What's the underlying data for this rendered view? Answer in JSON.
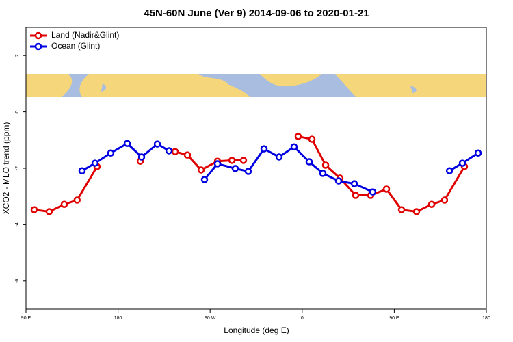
{
  "chart_data": {
    "type": "line",
    "title": "45N-60N June (Ver 9)   2014-09-06 to 2020-01-21",
    "xlabel": "Longitude (deg E)",
    "ylabel": "XCO2 - MLO trend (ppm)",
    "xlim": [
      90,
      540
    ],
    "xticks": [
      {
        "value": 90,
        "label": "90 E"
      },
      180,
      {
        "value": 270,
        "label": "90 W"
      },
      {
        "value": 360,
        "label": "0"
      },
      {
        "value": 450,
        "label": "90 E"
      },
      {
        "value": 540,
        "label": "180"
      }
    ],
    "ylim": [
      -7,
      3
    ],
    "yticks": [
      -6,
      -4,
      -2,
      0,
      2
    ],
    "legend": "top-left",
    "series": [
      {
        "name": "Land (Nadir&Glint)",
        "color": "#e00000",
        "x": [
          98,
          112.7,
          127.4,
          140,
          159.5,
          null,
          201.7,
          null,
          235.8,
          247.8,
          261.2,
          277.2,
          291.3,
          302.6,
          null,
          356.1,
          369.5,
          382.9,
          396.9,
          412.3,
          427,
          442.4,
          457.1,
          471.8,
          486.5,
          499.2,
          518.6
        ],
        "values": [
          -3.47,
          -3.54,
          -3.28,
          -3.13,
          -1.94,
          null,
          -1.75,
          null,
          -1.41,
          -1.53,
          -2.06,
          -1.75,
          -1.72,
          -1.72,
          null,
          -0.87,
          -0.97,
          -1.89,
          -2.35,
          -2.96,
          -2.96,
          -2.74,
          -3.47,
          -3.54,
          -3.28,
          -3.13,
          -1.94
        ]
      },
      {
        "name": "Ocean (Glint)",
        "color": "#0000e0",
        "x": [
          144.8,
          157.5,
          172.9,
          189,
          203,
          218.4,
          229.8,
          null,
          264.5,
          277.2,
          294.6,
          307.3,
          322.7,
          337.4,
          352.1,
          366.8,
          380.2,
          395.6,
          411,
          429,
          null,
          504,
          516.6,
          532
        ],
        "values": [
          -2.09,
          -1.82,
          -1.46,
          -1.12,
          -1.6,
          -1.14,
          -1.38,
          null,
          -2.4,
          -1.84,
          -2.01,
          -2.11,
          -1.31,
          -1.6,
          -1.24,
          -1.77,
          -2.18,
          -2.45,
          -2.55,
          -2.84,
          null,
          -2.09,
          -1.82,
          -1.46
        ]
      }
    ]
  }
}
